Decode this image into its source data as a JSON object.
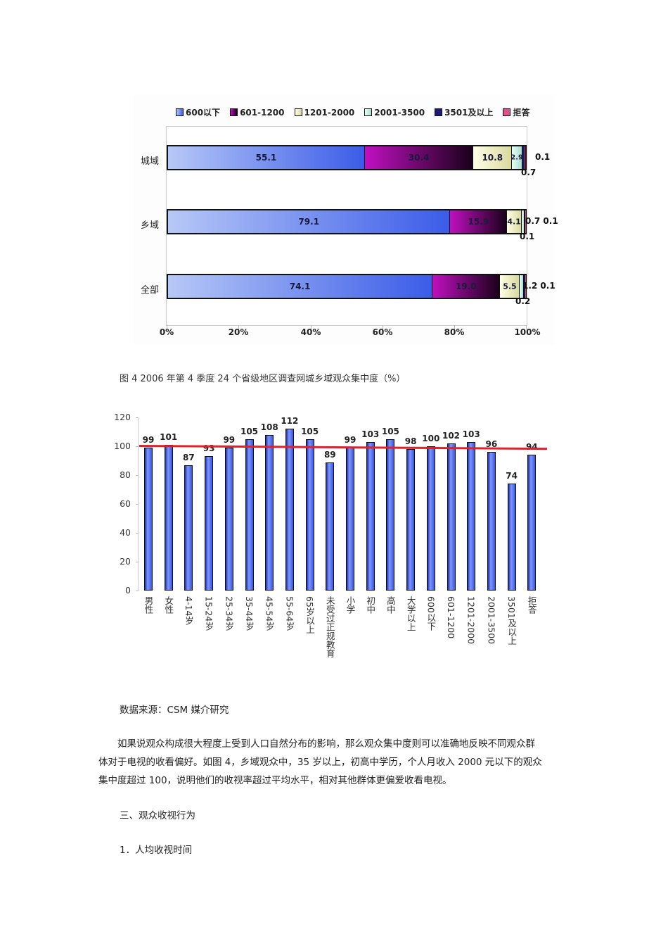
{
  "chart_data": [
    {
      "type": "bar",
      "orientation": "horizontal",
      "stacked": true,
      "title": "图4 2006年第4季度24个省级地区调查网城乡域观众集中度（%）",
      "categories": [
        "城域",
        "乡域",
        "全部"
      ],
      "series": [
        {
          "name": "600以下",
          "color": "#5b7cf0",
          "values": [
            55.1,
            79.1,
            74.1
          ]
        },
        {
          "name": "601-1200",
          "color": "#8a0a8a",
          "values": [
            30.4,
            15.9,
            19.0
          ]
        },
        {
          "name": "1201-2000",
          "color": "#f0f0c0",
          "values": [
            10.8,
            4.1,
            5.5
          ]
        },
        {
          "name": "2001-3500",
          "color": "#c8f0e6",
          "values": [
            2.9,
            0.7,
            1.2
          ]
        },
        {
          "name": "3501及以上",
          "color": "#1a1a7a",
          "values": [
            0.7,
            0.1,
            0.2
          ]
        },
        {
          "name": "拒答",
          "color": "#e0508a",
          "values": [
            0.1,
            0.1,
            0.1
          ]
        }
      ],
      "xlabel": "",
      "ylabel": "",
      "xlim": [
        0,
        100
      ],
      "xticks": [
        "0%",
        "20%",
        "40%",
        "60%",
        "80%",
        "100%"
      ],
      "legend_position": "top",
      "grid": false
    },
    {
      "type": "bar",
      "orientation": "vertical",
      "title": "",
      "categories": [
        "男性",
        "女性",
        "4-14岁",
        "15-24岁",
        "25-34岁",
        "35-44岁",
        "45-54岁",
        "55-64岁",
        "65岁以上",
        "未受过正规教育",
        "小学",
        "初中",
        "高中",
        "大学以上",
        "600以下",
        "601-1200",
        "1201-2000",
        "2001-3500",
        "3501及以上",
        "拒答"
      ],
      "values": [
        99,
        101,
        87,
        93,
        99,
        105,
        108,
        112,
        105,
        89,
        99,
        103,
        105,
        98,
        100,
        102,
        103,
        96,
        74,
        94
      ],
      "reference_line": {
        "value": 100,
        "color": "#e0202a",
        "label": ""
      },
      "xlabel": "",
      "ylabel": "",
      "ylim": [
        0,
        120
      ],
      "yticks": [
        0,
        20,
        40,
        60,
        80,
        100,
        120
      ],
      "grid": false
    }
  ],
  "chart1": {
    "legend": [
      "600以下",
      "601-1200",
      "1201-2000",
      "2001-3500",
      "3501及以上",
      "拒答"
    ],
    "rows": [
      {
        "label": "城域",
        "segs": [
          "55.1",
          "30.4",
          "10.8",
          "2.9"
        ],
        "ext_right": "0.1",
        "ext_below": "0.7"
      },
      {
        "label": "乡域",
        "segs": [
          "79.1",
          "15.9",
          "4.1",
          ""
        ],
        "ext_right": "0.7 0.1",
        "ext_below": "0.1"
      },
      {
        "label": "全部",
        "segs": [
          "74.1",
          "19.0",
          "5.5",
          ""
        ],
        "ext_right": "1.2 0.1",
        "ext_below": "0.2"
      }
    ],
    "xticks": [
      "0%",
      "20%",
      "40%",
      "60%",
      "80%",
      "100%"
    ]
  },
  "chart2": {
    "yticks": [
      "120",
      "100",
      "80",
      "60",
      "40",
      "20",
      "0"
    ]
  },
  "document": {
    "caption": "图 4 2006 年第 4 季度 24 个省级地区调查网城乡域观众集中度（%）",
    "source": "数据来源：CSM 媒介研究",
    "paragraph_lines": [
      "　　如果说观众构成很大程度上受到人口自然分布的影响，那么观众集中度则可以准确地反映不同观众群",
      "体对于电视的收看偏好。如图 4，乡域观众中，35 岁以上，初高中学历，个人月收入 2000 元以下的观众",
      "集中度超过 100，说明他们的收视率超过平均水平，相对其他群体更偏爱收看电视。"
    ],
    "section_heading": "三、观众收视行为",
    "subsection_heading": "1．人均收视时间"
  }
}
